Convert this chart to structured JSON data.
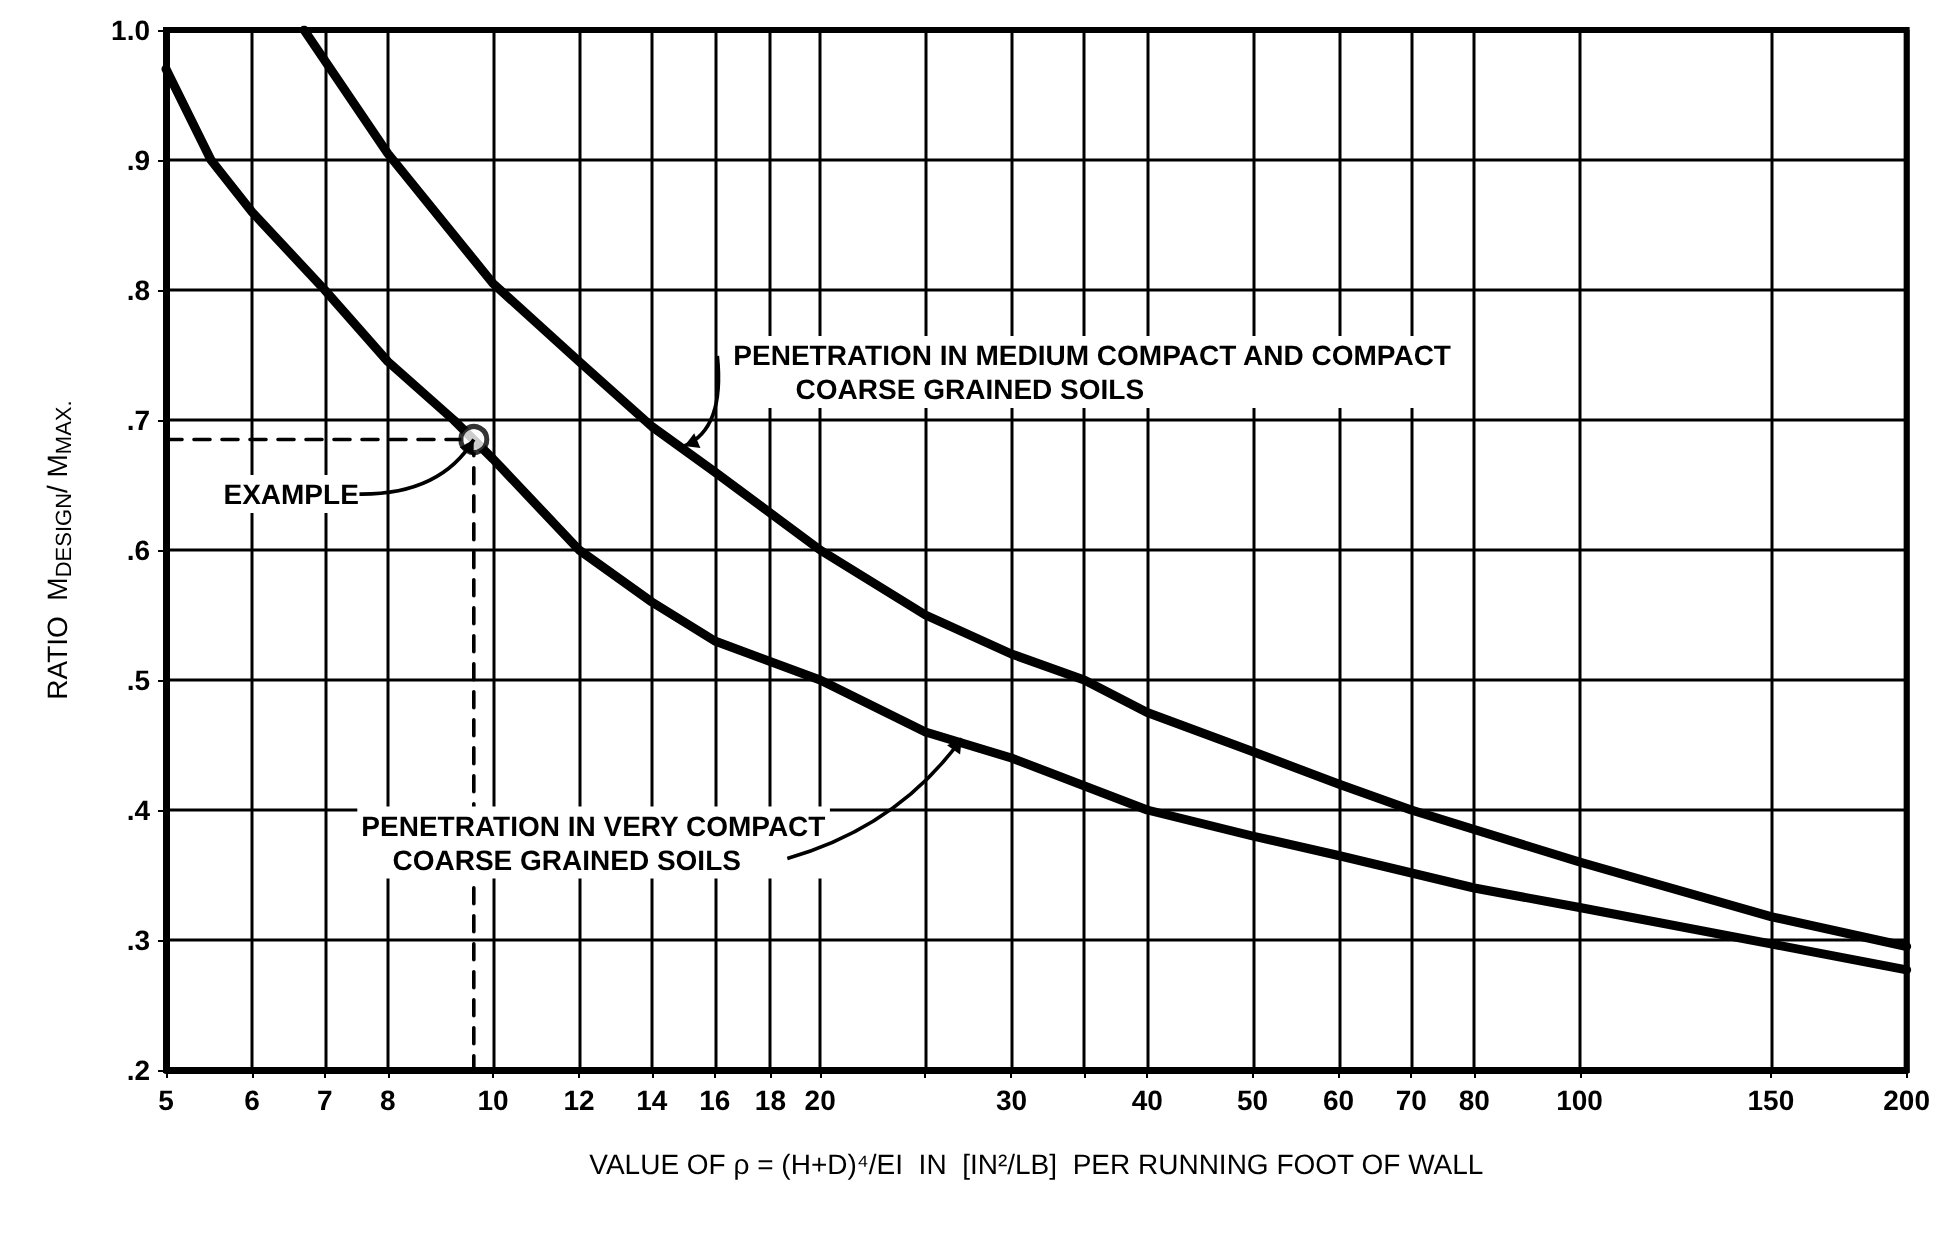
{
  "chart_data": {
    "type": "line",
    "xlabel": "VALUE OF ρ = (H+D)⁴/EI  IN  [IN²/LB]  PER RUNNING FOOT OF WALL",
    "ylabel": "RATIO  M$_{DESIGN}$/ M$_{MAX.}$",
    "log": "x",
    "grid": true,
    "marker": "none",
    "line_style": "solid",
    "xlim": [
      5,
      200
    ],
    "xticks": [
      5,
      6,
      7,
      8,
      10,
      12,
      14,
      16,
      18,
      20,
      {
        "value": 25,
        "label": null
      },
      30,
      {
        "value": 35,
        "label": null
      },
      40,
      50,
      60,
      70,
      80,
      100,
      150,
      200
    ],
    "ylim": [
      0.2,
      1.0
    ],
    "yticks": [
      {
        "value": 0.2,
        "label": ".2"
      },
      {
        "value": 0.3,
        "label": ".3"
      },
      {
        "value": 0.4,
        "label": ".4"
      },
      {
        "value": 0.5,
        "label": ".5"
      },
      {
        "value": 0.6,
        "label": ".6"
      },
      {
        "value": 0.7,
        "label": ".7"
      },
      {
        "value": 0.8,
        "label": ".8"
      },
      {
        "value": 0.9,
        "label": ".9"
      },
      {
        "value": 1.0,
        "label": "1.0"
      }
    ],
    "series": [
      {
        "color": "#000000",
        "x": [
          5,
          5.5,
          6,
          7,
          8,
          9.2,
          10,
          12,
          14,
          16,
          20,
          25,
          30,
          40,
          50,
          60,
          80,
          100,
          150,
          200
        ],
        "values": [
          0.97,
          0.9,
          0.86,
          0.8,
          0.745,
          0.7,
          0.67,
          0.6,
          0.56,
          0.53,
          0.5,
          0.46,
          0.44,
          0.4,
          0.38,
          0.365,
          0.34,
          0.325,
          0.297,
          0.277
        ]
      },
      {
        "color": "#000000",
        "x": [
          6.7,
          8,
          10,
          12,
          14,
          16,
          20,
          25,
          30,
          35,
          40,
          50,
          60,
          70,
          80,
          100,
          150,
          200
        ],
        "values": [
          1.0,
          0.905,
          0.805,
          0.745,
          0.695,
          0.66,
          0.6,
          0.55,
          0.52,
          0.5,
          0.475,
          0.445,
          0.42,
          0.4,
          0.385,
          0.36,
          0.318,
          0.295
        ]
      },
      {
        "color": "#000000",
        "line_style": "dashed",
        "x": [
          5,
          9.6,
          9.6
        ],
        "values": [
          0.685,
          0.685,
          0.2
        ]
      },
      {
        "type": "scatter",
        "marker": "circle",
        "color": "#000000",
        "x": [
          9.6
        ],
        "values": [
          0.685
        ]
      }
    ],
    "annotations": [
      {
        "text": "PENETRATION IN MEDIUM COMPACT AND COMPACT\n        COARSE GRAINED SOILS",
        "x": 15,
        "y": 0.68
      },
      {
        "text": "EXAMPLE",
        "x": 9.6,
        "y": 0.685
      },
      {
        "text": "PENETRATION IN VERY COMPACT\n    COARSE GRAINED SOILS",
        "x": 27,
        "y": 0.455
      }
    ]
  }
}
